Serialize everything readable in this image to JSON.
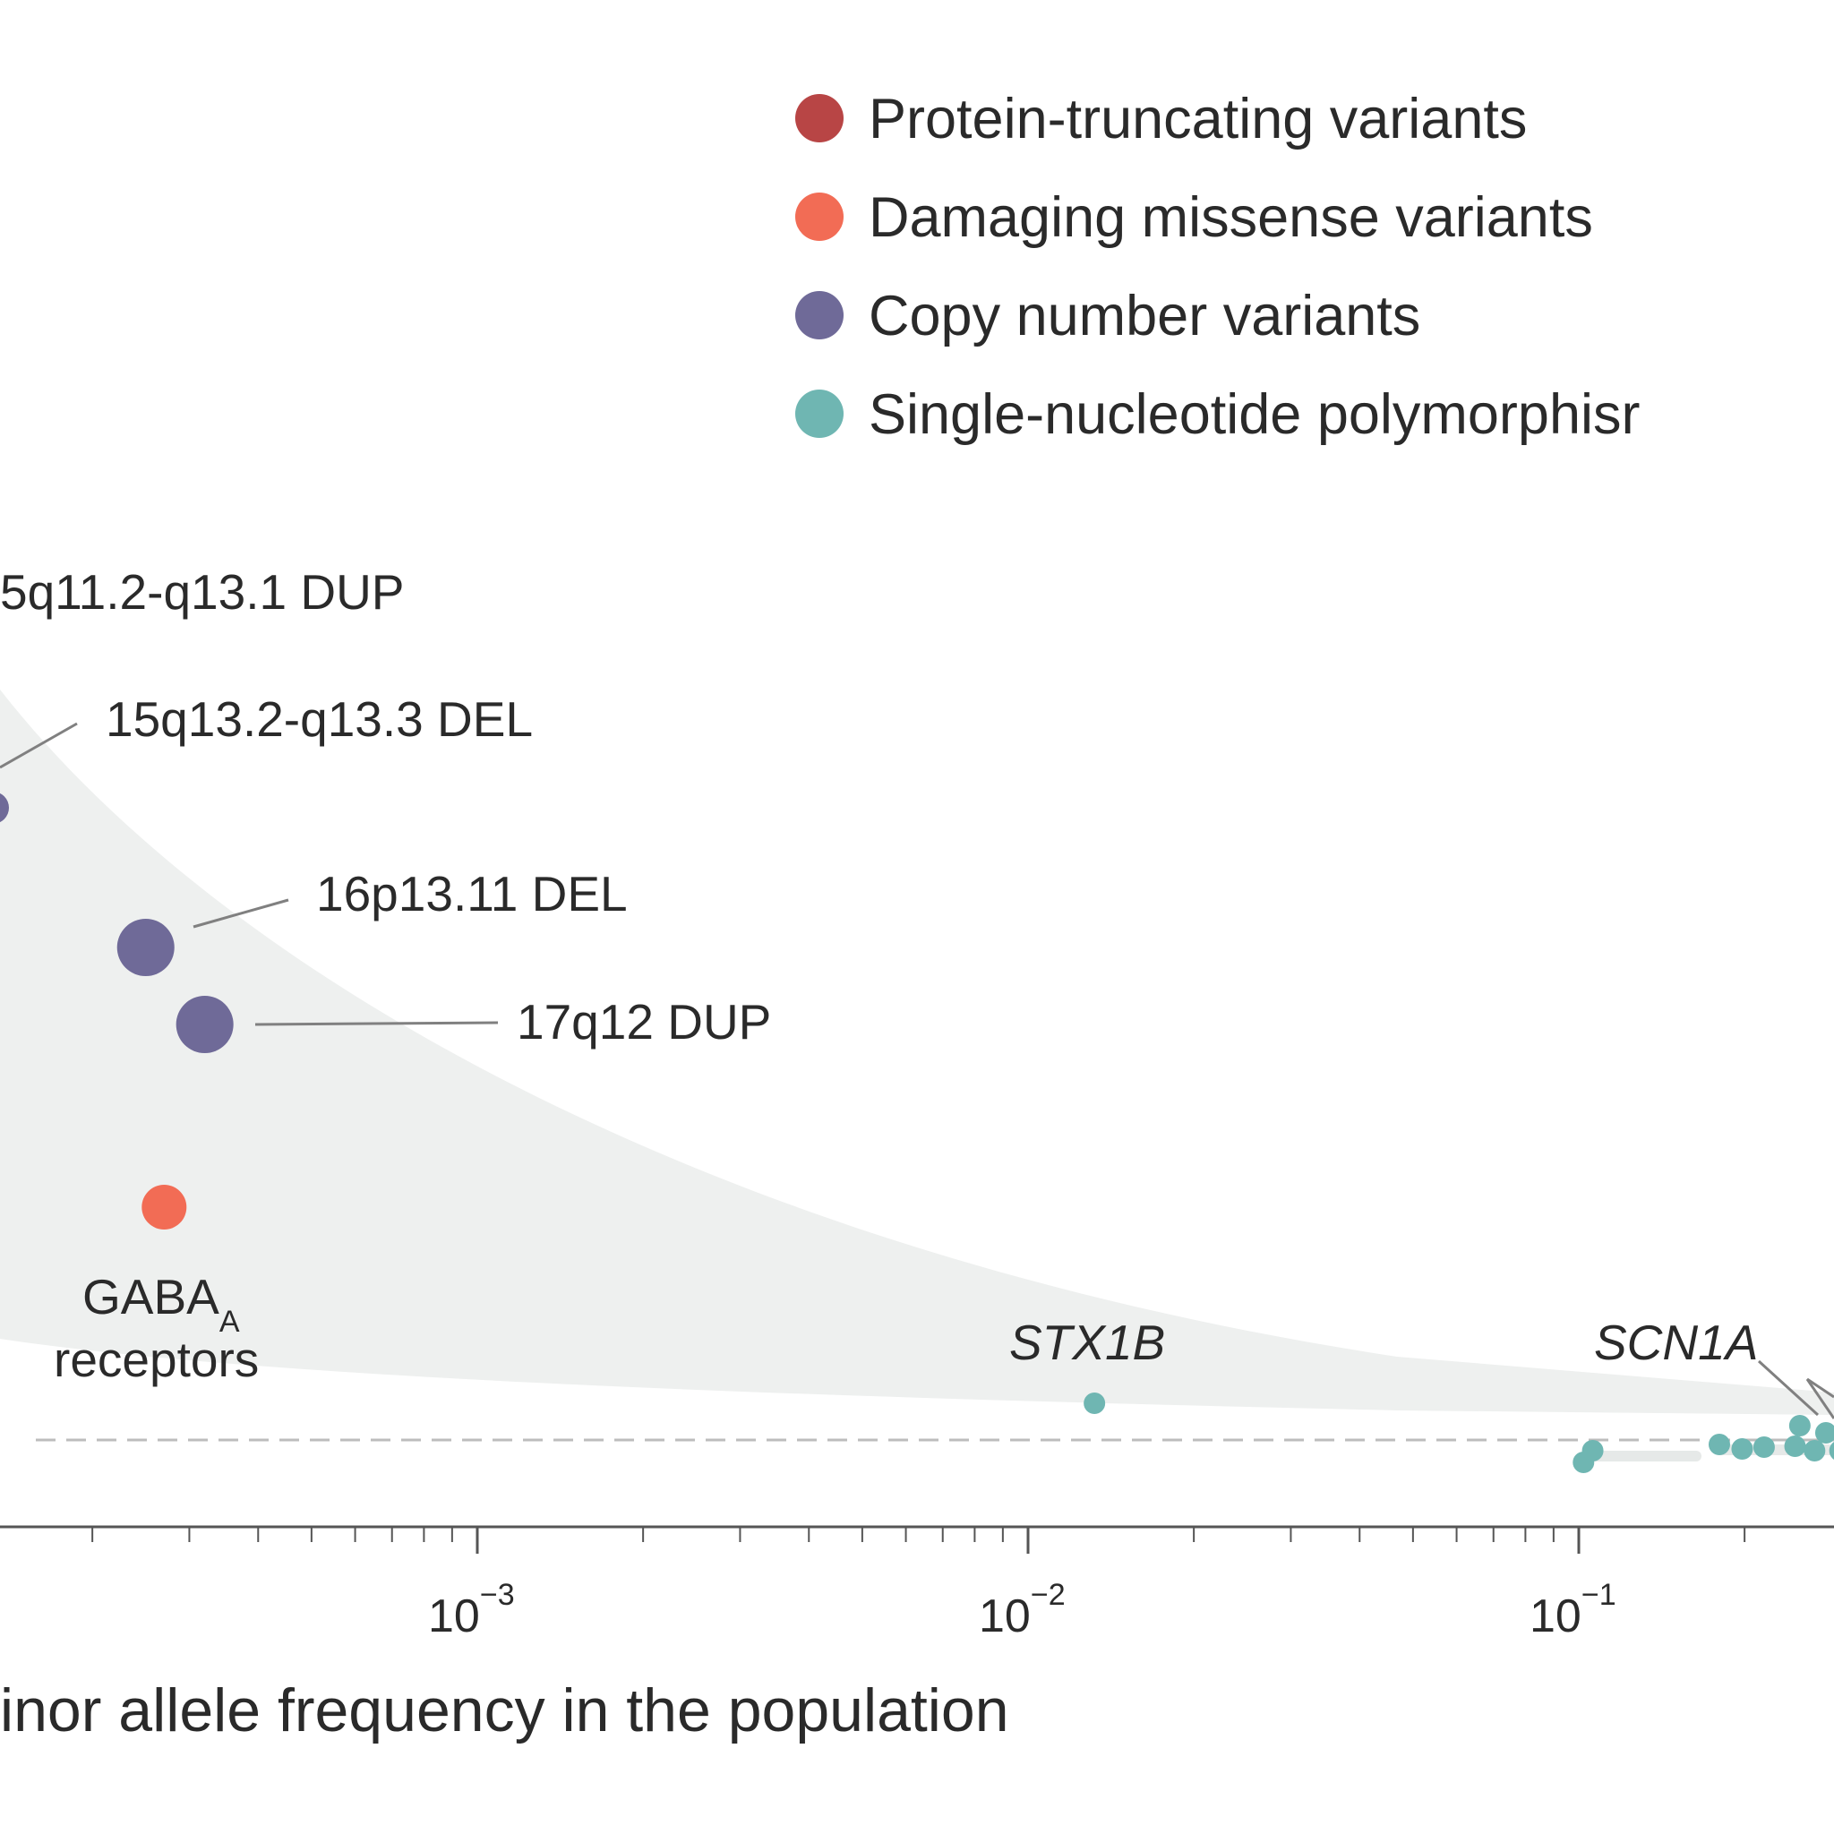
{
  "colors": {
    "ptv": "#b84545",
    "missense": "#f26c55",
    "cnv": "#6f6a98",
    "snp": "#6fb6b2",
    "band": "#eef0ef",
    "axis": "#555555",
    "leader": "#808080"
  },
  "chart_data": {
    "type": "scatter",
    "xlabel": "inor allele frequency in the population",
    "xscale": "log",
    "xlim": [
      2.1e-05,
      0.68
    ],
    "x_major_ticks": [
      {
        "value": 0.001,
        "base": "10",
        "exp": "−3"
      },
      {
        "value": 0.01,
        "base": "10",
        "exp": "−2"
      },
      {
        "value": 0.1,
        "base": "10",
        "exp": "−1"
      }
    ],
    "legend": {
      "placement": "top-right",
      "entries": [
        {
          "key": "ptv",
          "label": "Protein-truncating variants"
        },
        {
          "key": "missense",
          "label": "Damaging missense variants"
        },
        {
          "key": "cnv",
          "label": "Copy number variants"
        },
        {
          "key": "snp",
          "label": "Single-nucleotide polymorphisr"
        }
      ]
    },
    "annotations": {
      "dup15q": "5q11.2-q13.1 DUP",
      "del15q": "15q13.2-q13.3 DEL",
      "del16p": "16p13.11 DEL",
      "dup17q": "17q12 DUP",
      "gaba_main": "GABA",
      "gaba_sub": "A",
      "gaba_line2": "receptors",
      "stx1b": "STX1B",
      "scn1a": "SCN1A"
    },
    "series": [
      {
        "key": "cnv",
        "points": [
          {
            "x": 0.00025,
            "id": "16p13.11 DEL"
          },
          {
            "x": 0.00032,
            "id": "17q12 DUP"
          }
        ]
      },
      {
        "key": "missense",
        "points": [
          {
            "x": 0.00027,
            "id": "GABAA receptors"
          }
        ]
      },
      {
        "key": "snp",
        "points": [
          {
            "x": 0.0132,
            "id": "STX1B"
          },
          {
            "x": 0.102
          },
          {
            "x": 0.106
          },
          {
            "x": 0.18
          },
          {
            "x": 0.198
          },
          {
            "x": 0.217
          },
          {
            "x": 0.247
          },
          {
            "x": 0.252
          },
          {
            "x": 0.268
          },
          {
            "x": 0.281
          },
          {
            "x": 0.298
          }
        ]
      }
    ]
  }
}
